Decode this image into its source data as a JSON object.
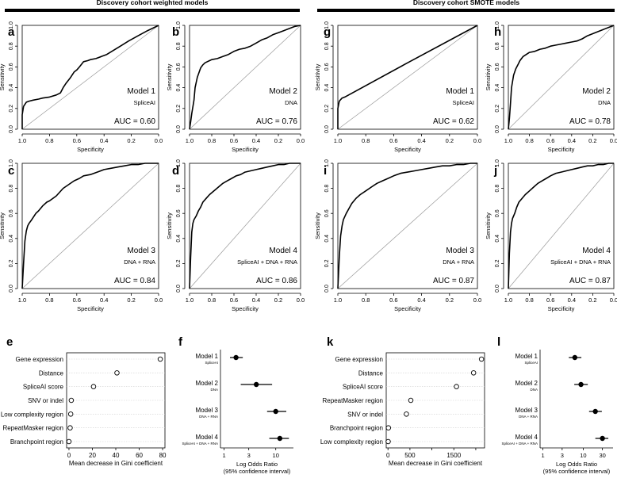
{
  "headers": {
    "left": "Discovery cohort weighted models",
    "right": "Discovery cohort SMOTE models"
  },
  "roc_axes": {
    "xlabel": "Specificity",
    "ylabel": "Sensitivity",
    "xticks": [
      "1.0",
      "0.8",
      "0.6",
      "0.4",
      "0.2",
      "0.0"
    ],
    "yticks": [
      "0.0",
      "0.2",
      "0.4",
      "0.6",
      "0.8",
      "1.0"
    ]
  },
  "chart_data": [
    {
      "type": "line",
      "panel": "a",
      "model": "Model 1",
      "features": "SpliceAI",
      "auc": "AUC = 0.60",
      "xlabel": "Specificity",
      "ylabel": "Sensitivity",
      "xlim": [
        1,
        0
      ],
      "ylim": [
        0,
        1
      ],
      "x": [
        1.0,
        1.0,
        0.99,
        0.97,
        0.95,
        0.92,
        0.88,
        0.85,
        0.8,
        0.75,
        0.72,
        0.7,
        0.68,
        0.65,
        0.62,
        0.6,
        0.58,
        0.55,
        0.52,
        0.5,
        0.46,
        0.42,
        0.38,
        0.33,
        0.28,
        0.22,
        0.15,
        0.08,
        0.0
      ],
      "y": [
        0.0,
        0.14,
        0.22,
        0.26,
        0.27,
        0.28,
        0.29,
        0.3,
        0.31,
        0.33,
        0.35,
        0.4,
        0.44,
        0.49,
        0.55,
        0.57,
        0.6,
        0.65,
        0.66,
        0.67,
        0.68,
        0.7,
        0.72,
        0.76,
        0.8,
        0.85,
        0.9,
        0.95,
        1.0
      ]
    },
    {
      "type": "line",
      "panel": "b",
      "model": "Model 2",
      "features": "DNA",
      "auc": "AUC = 0.76",
      "xlabel": "Specificity",
      "ylabel": "Sensitivity",
      "xlim": [
        1,
        0
      ],
      "ylim": [
        0,
        1
      ],
      "x": [
        1.0,
        0.99,
        0.98,
        0.96,
        0.95,
        0.93,
        0.91,
        0.9,
        0.88,
        0.86,
        0.84,
        0.82,
        0.8,
        0.75,
        0.7,
        0.65,
        0.6,
        0.55,
        0.5,
        0.45,
        0.4,
        0.35,
        0.3,
        0.25,
        0.2,
        0.15,
        0.1,
        0.05,
        0.0
      ],
      "y": [
        0.0,
        0.07,
        0.15,
        0.28,
        0.4,
        0.5,
        0.56,
        0.59,
        0.62,
        0.64,
        0.65,
        0.66,
        0.67,
        0.68,
        0.7,
        0.72,
        0.75,
        0.77,
        0.78,
        0.8,
        0.83,
        0.86,
        0.88,
        0.91,
        0.93,
        0.95,
        0.97,
        0.99,
        1.0
      ]
    },
    {
      "type": "line",
      "panel": "c",
      "model": "Model 3",
      "features": "DNA + RNA",
      "auc": "AUC = 0.84",
      "xlabel": "Specificity",
      "ylabel": "Sensitivity",
      "xlim": [
        1,
        0
      ],
      "ylim": [
        0,
        1
      ],
      "x": [
        1.0,
        0.99,
        0.98,
        0.97,
        0.96,
        0.95,
        0.93,
        0.9,
        0.88,
        0.85,
        0.82,
        0.8,
        0.75,
        0.7,
        0.66,
        0.62,
        0.58,
        0.55,
        0.5,
        0.45,
        0.4,
        0.35,
        0.3,
        0.25,
        0.2,
        0.15,
        0.1,
        0.05,
        0.0
      ],
      "y": [
        0.0,
        0.2,
        0.38,
        0.46,
        0.5,
        0.52,
        0.55,
        0.6,
        0.62,
        0.66,
        0.69,
        0.7,
        0.74,
        0.8,
        0.83,
        0.86,
        0.88,
        0.9,
        0.91,
        0.93,
        0.95,
        0.96,
        0.97,
        0.98,
        0.99,
        0.99,
        1.0,
        1.0,
        1.0
      ]
    },
    {
      "type": "line",
      "panel": "d",
      "model": "Model 4",
      "features": "SpliceAI + DNA + RNA",
      "auc": "AUC = 0.86",
      "xlabel": "Specificity",
      "ylabel": "Sensitivity",
      "xlim": [
        1,
        0
      ],
      "ylim": [
        0,
        1
      ],
      "x": [
        1.0,
        0.99,
        0.98,
        0.97,
        0.96,
        0.94,
        0.92,
        0.9,
        0.88,
        0.85,
        0.82,
        0.78,
        0.74,
        0.7,
        0.66,
        0.62,
        0.58,
        0.54,
        0.5,
        0.45,
        0.4,
        0.35,
        0.3,
        0.25,
        0.2,
        0.15,
        0.1,
        0.05,
        0.0
      ],
      "y": [
        0.0,
        0.25,
        0.45,
        0.52,
        0.55,
        0.58,
        0.62,
        0.65,
        0.69,
        0.72,
        0.75,
        0.78,
        0.81,
        0.84,
        0.86,
        0.88,
        0.9,
        0.91,
        0.93,
        0.94,
        0.95,
        0.96,
        0.97,
        0.98,
        0.99,
        0.99,
        1.0,
        1.0,
        1.0
      ]
    },
    {
      "type": "line",
      "panel": "g",
      "model": "Model 1",
      "features": "SpliceAI",
      "auc": "AUC = 0.62",
      "xlabel": "Specificity",
      "ylabel": "Sensitivity",
      "xlim": [
        1,
        0
      ],
      "ylim": [
        0,
        1
      ],
      "x": [
        1.0,
        1.0,
        0.99,
        0.97,
        0.95,
        0.5,
        0.0
      ],
      "y": [
        0.0,
        0.2,
        0.27,
        0.3,
        0.31,
        0.64,
        1.0
      ]
    },
    {
      "type": "line",
      "panel": "h",
      "model": "Model 2",
      "features": "DNA",
      "auc": "AUC = 0.78",
      "xlabel": "Specificity",
      "ylabel": "Sensitivity",
      "xlim": [
        1,
        0
      ],
      "ylim": [
        0,
        1
      ],
      "x": [
        1.0,
        0.99,
        0.98,
        0.97,
        0.95,
        0.93,
        0.91,
        0.89,
        0.86,
        0.83,
        0.8,
        0.75,
        0.7,
        0.65,
        0.6,
        0.55,
        0.5,
        0.45,
        0.4,
        0.35,
        0.3,
        0.25,
        0.2,
        0.15,
        0.1,
        0.05,
        0.0
      ],
      "y": [
        0.0,
        0.1,
        0.25,
        0.4,
        0.52,
        0.58,
        0.62,
        0.66,
        0.7,
        0.72,
        0.74,
        0.75,
        0.77,
        0.78,
        0.8,
        0.81,
        0.82,
        0.83,
        0.84,
        0.85,
        0.87,
        0.9,
        0.92,
        0.94,
        0.96,
        0.98,
        1.0
      ]
    },
    {
      "type": "line",
      "panel": "i",
      "model": "Model 3",
      "features": "DNA + RNA",
      "auc": "AUC = 0.87",
      "xlabel": "Specificity",
      "ylabel": "Sensitivity",
      "xlim": [
        1,
        0
      ],
      "ylim": [
        0,
        1
      ],
      "x": [
        1.0,
        0.99,
        0.98,
        0.97,
        0.96,
        0.94,
        0.92,
        0.9,
        0.87,
        0.84,
        0.8,
        0.76,
        0.72,
        0.68,
        0.64,
        0.6,
        0.55,
        0.5,
        0.45,
        0.4,
        0.35,
        0.3,
        0.25,
        0.2,
        0.15,
        0.1,
        0.05,
        0.0
      ],
      "y": [
        0.0,
        0.25,
        0.42,
        0.5,
        0.55,
        0.6,
        0.64,
        0.68,
        0.72,
        0.75,
        0.78,
        0.81,
        0.84,
        0.86,
        0.88,
        0.9,
        0.92,
        0.93,
        0.94,
        0.95,
        0.96,
        0.97,
        0.98,
        0.98,
        0.99,
        0.99,
        1.0,
        1.0
      ]
    },
    {
      "type": "line",
      "panel": "j",
      "model": "Model 4",
      "features": "SpliceAI + DNA + RNA",
      "auc": "AUC = 0.87",
      "xlabel": "Specificity",
      "ylabel": "Sensitivity",
      "xlim": [
        1,
        0
      ],
      "ylim": [
        0,
        1
      ],
      "x": [
        1.0,
        0.99,
        0.98,
        0.97,
        0.96,
        0.94,
        0.92,
        0.9,
        0.87,
        0.84,
        0.8,
        0.76,
        0.72,
        0.68,
        0.64,
        0.6,
        0.55,
        0.5,
        0.45,
        0.4,
        0.35,
        0.3,
        0.25,
        0.2,
        0.15,
        0.1,
        0.05,
        0.0
      ],
      "y": [
        0.0,
        0.28,
        0.45,
        0.52,
        0.56,
        0.6,
        0.65,
        0.69,
        0.72,
        0.75,
        0.78,
        0.81,
        0.84,
        0.86,
        0.88,
        0.9,
        0.92,
        0.93,
        0.94,
        0.95,
        0.96,
        0.97,
        0.98,
        0.98,
        0.99,
        0.99,
        1.0,
        1.0
      ]
    },
    {
      "type": "scatter",
      "panel": "e",
      "xlabel": "Mean decrease in Gini coefficient",
      "xlim": [
        -2,
        82
      ],
      "xticks": [
        0,
        20,
        40,
        60,
        80
      ],
      "categories": [
        "Gene expression",
        "Distance",
        "SpliceAI score",
        "SNV or indel",
        "Low complexity region",
        "RepeatMasker region",
        "Branchpoint region"
      ],
      "values": [
        78,
        41,
        21,
        2,
        1.5,
        1,
        0
      ]
    },
    {
      "type": "scatter",
      "panel": "k",
      "xlabel": "Mean decrease in Gini coefficient",
      "xlim": [
        -40,
        2200
      ],
      "xticks": [
        0,
        500,
        1000,
        1500,
        2000
      ],
      "xtick_labels": [
        "0",
        "500",
        "",
        "1500",
        ""
      ],
      "categories": [
        "Gene expression",
        "Distance",
        "SpliceAI score",
        "RepeatMasker region",
        "SNV or indel",
        "Branchpoint region",
        "Low complexity region"
      ],
      "values": [
        2130,
        1950,
        1560,
        520,
        420,
        10,
        5
      ]
    },
    {
      "type": "forest",
      "panel": "f",
      "xlabel": "Log Odds Ratio",
      "xlabel2": "(95% confidence interval)",
      "scale": "log",
      "xlim": [
        0.85,
        22
      ],
      "xticks": [
        1,
        3,
        10
      ],
      "categories": [
        "Model 1",
        "Model 2",
        "Model 3",
        "Model 4"
      ],
      "sublabels": [
        "SpliceAI",
        "DNA",
        "DNA + RNA",
        "SpliceAI + DNA + RNA"
      ],
      "or": [
        1.7,
        4.2,
        10.0,
        12.0
      ],
      "lo": [
        1.3,
        2.1,
        6.8,
        7.5
      ],
      "hi": [
        2.3,
        8.5,
        16.0,
        18.0
      ]
    },
    {
      "type": "forest",
      "panel": "l",
      "xlabel": "Log Odds Ratio",
      "xlabel2": "(95% confidence interval)",
      "scale": "log",
      "xlim": [
        0.85,
        55
      ],
      "xticks": [
        1,
        3,
        10,
        30
      ],
      "categories": [
        "Model 1",
        "Model 2",
        "Model 3",
        "Model 4"
      ],
      "sublabels": [
        "SpliceAI",
        "DNA",
        "DNA + RNA",
        "SpliceAI + DNA + RNA"
      ],
      "or": [
        6.2,
        8.8,
        20.0,
        30.0
      ],
      "lo": [
        4.4,
        6.0,
        14.0,
        20.0
      ],
      "hi": [
        9.0,
        13.0,
        29.0,
        42.0
      ]
    }
  ]
}
